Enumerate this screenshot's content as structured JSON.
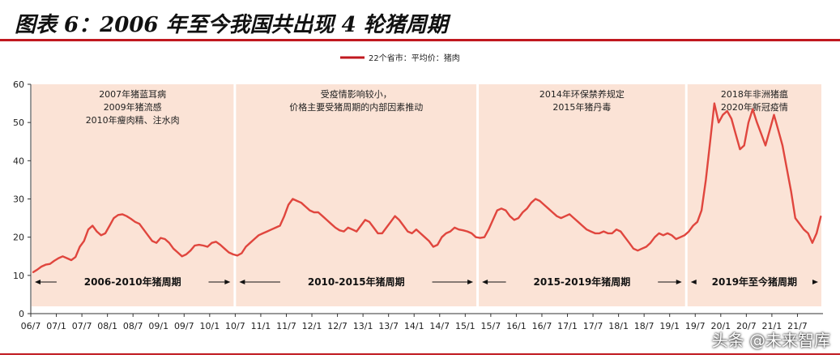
{
  "figure_title": "图表 6：2006 年至今我国共出现 4 轮猪周期",
  "watermark": "头条 @未来智库",
  "colors": {
    "line": "#e0463e",
    "shade": "#fbe3d6",
    "rule": "#c0181f",
    "legend": "#c0181f"
  },
  "chart_data": {
    "type": "line",
    "title": "",
    "xlabel": "",
    "ylabel": "",
    "ylim": [
      0,
      60
    ],
    "yticks": [
      0,
      10,
      20,
      30,
      40,
      50,
      60
    ],
    "legend": {
      "position": "top-center",
      "label": "22个省市：平均价：猪肉"
    },
    "x_tick_labels": [
      "06/7",
      "07/1",
      "07/7",
      "08/1",
      "08/7",
      "09/1",
      "09/7",
      "10/1",
      "10/7",
      "11/1",
      "11/7",
      "12/1",
      "12/7",
      "13/1",
      "13/7",
      "14/1",
      "14/7",
      "15/1",
      "15/7",
      "16/1",
      "16/7",
      "17/1",
      "17/7",
      "18/1",
      "18/7",
      "19/1",
      "19/7",
      "20/1",
      "20/7",
      "21/1",
      "21/7"
    ],
    "x_start": "2006-07",
    "x_end": "2021-12",
    "cycles": [
      {
        "label": "2006-2010年猪周期",
        "start": "2006-07",
        "end": "2010-06",
        "notes": [
          "2007年猪蓝耳病",
          "2009年猪流感",
          "2010年瘦肉精、注水肉"
        ]
      },
      {
        "label": "2010-2015年猪周期",
        "start": "2010-07",
        "end": "2015-03",
        "notes": [
          "受疫情影响较小，",
          "价格主要受猪周期的内部因素推动"
        ]
      },
      {
        "label": "2015-2019年猪周期",
        "start": "2015-04",
        "end": "2019-04",
        "notes": [
          "2014年环保禁养规定",
          "2015年猪丹毒"
        ]
      },
      {
        "label": "2019年至今猪周期",
        "start": "2019-05",
        "end": "2021-12",
        "notes": [
          "2018年非洲猪瘟",
          "2020年新冠疫情"
        ]
      }
    ],
    "series": [
      {
        "name": "22个省市：平均价：猪肉",
        "points": [
          [
            "2006-07",
            10.8
          ],
          [
            "2006-08",
            11.5
          ],
          [
            "2006-09",
            12.3
          ],
          [
            "2006-10",
            12.8
          ],
          [
            "2006-11",
            13.0
          ],
          [
            "2006-12",
            13.8
          ],
          [
            "2007-01",
            14.5
          ],
          [
            "2007-02",
            15.0
          ],
          [
            "2007-03",
            14.5
          ],
          [
            "2007-04",
            14.0
          ],
          [
            "2007-05",
            14.8
          ],
          [
            "2007-06",
            17.5
          ],
          [
            "2007-07",
            19.0
          ],
          [
            "2007-08",
            22.0
          ],
          [
            "2007-09",
            23.0
          ],
          [
            "2007-10",
            21.5
          ],
          [
            "2007-11",
            20.5
          ],
          [
            "2007-12",
            21.0
          ],
          [
            "2008-01",
            23.0
          ],
          [
            "2008-02",
            25.0
          ],
          [
            "2008-03",
            25.8
          ],
          [
            "2008-04",
            26.0
          ],
          [
            "2008-05",
            25.5
          ],
          [
            "2008-06",
            24.8
          ],
          [
            "2008-07",
            24.0
          ],
          [
            "2008-08",
            23.5
          ],
          [
            "2008-09",
            22.0
          ],
          [
            "2008-10",
            20.5
          ],
          [
            "2008-11",
            19.0
          ],
          [
            "2008-12",
            18.5
          ],
          [
            "2009-01",
            19.8
          ],
          [
            "2009-02",
            19.5
          ],
          [
            "2009-03",
            18.5
          ],
          [
            "2009-04",
            17.0
          ],
          [
            "2009-05",
            16.0
          ],
          [
            "2009-06",
            15.0
          ],
          [
            "2009-07",
            15.5
          ],
          [
            "2009-08",
            16.5
          ],
          [
            "2009-09",
            17.8
          ],
          [
            "2009-10",
            18.0
          ],
          [
            "2009-11",
            17.8
          ],
          [
            "2009-12",
            17.5
          ],
          [
            "2010-01",
            18.5
          ],
          [
            "2010-02",
            18.8
          ],
          [
            "2010-03",
            18.0
          ],
          [
            "2010-04",
            17.0
          ],
          [
            "2010-05",
            16.0
          ],
          [
            "2010-06",
            15.5
          ],
          [
            "2010-07",
            15.2
          ],
          [
            "2010-08",
            15.8
          ],
          [
            "2010-09",
            17.5
          ],
          [
            "2010-10",
            18.5
          ],
          [
            "2010-11",
            19.5
          ],
          [
            "2010-12",
            20.5
          ],
          [
            "2011-01",
            21.0
          ],
          [
            "2011-02",
            21.5
          ],
          [
            "2011-03",
            22.0
          ],
          [
            "2011-04",
            22.5
          ],
          [
            "2011-05",
            23.0
          ],
          [
            "2011-06",
            25.5
          ],
          [
            "2011-07",
            28.5
          ],
          [
            "2011-08",
            30.0
          ],
          [
            "2011-09",
            29.5
          ],
          [
            "2011-10",
            29.0
          ],
          [
            "2011-11",
            28.0
          ],
          [
            "2011-12",
            27.0
          ],
          [
            "2012-01",
            26.5
          ],
          [
            "2012-02",
            26.5
          ],
          [
            "2012-03",
            25.5
          ],
          [
            "2012-04",
            24.5
          ],
          [
            "2012-05",
            23.5
          ],
          [
            "2012-06",
            22.5
          ],
          [
            "2012-07",
            21.8
          ],
          [
            "2012-08",
            21.5
          ],
          [
            "2012-09",
            22.5
          ],
          [
            "2012-10",
            22.0
          ],
          [
            "2012-11",
            21.5
          ],
          [
            "2012-12",
            23.0
          ],
          [
            "2013-01",
            24.5
          ],
          [
            "2013-02",
            24.0
          ],
          [
            "2013-03",
            22.5
          ],
          [
            "2013-04",
            21.0
          ],
          [
            "2013-05",
            21.0
          ],
          [
            "2013-06",
            22.5
          ],
          [
            "2013-07",
            24.0
          ],
          [
            "2013-08",
            25.5
          ],
          [
            "2013-09",
            24.5
          ],
          [
            "2013-10",
            23.0
          ],
          [
            "2013-11",
            21.5
          ],
          [
            "2013-12",
            21.0
          ],
          [
            "2014-01",
            22.0
          ],
          [
            "2014-02",
            21.0
          ],
          [
            "2014-03",
            20.0
          ],
          [
            "2014-04",
            19.0
          ],
          [
            "2014-05",
            17.5
          ],
          [
            "2014-06",
            18.0
          ],
          [
            "2014-07",
            20.0
          ],
          [
            "2014-08",
            21.0
          ],
          [
            "2014-09",
            21.5
          ],
          [
            "2014-10",
            22.5
          ],
          [
            "2014-11",
            22.0
          ],
          [
            "2014-12",
            21.8
          ],
          [
            "2015-01",
            21.5
          ],
          [
            "2015-02",
            21.0
          ],
          [
            "2015-03",
            20.0
          ],
          [
            "2015-04",
            19.8
          ],
          [
            "2015-05",
            20.0
          ],
          [
            "2015-06",
            22.0
          ],
          [
            "2015-07",
            24.5
          ],
          [
            "2015-08",
            27.0
          ],
          [
            "2015-09",
            27.5
          ],
          [
            "2015-10",
            27.0
          ],
          [
            "2015-11",
            25.5
          ],
          [
            "2015-12",
            24.5
          ],
          [
            "2016-01",
            25.0
          ],
          [
            "2016-02",
            26.5
          ],
          [
            "2016-03",
            27.5
          ],
          [
            "2016-04",
            29.0
          ],
          [
            "2016-05",
            30.0
          ],
          [
            "2016-06",
            29.5
          ],
          [
            "2016-07",
            28.5
          ],
          [
            "2016-08",
            27.5
          ],
          [
            "2016-09",
            26.5
          ],
          [
            "2016-10",
            25.5
          ],
          [
            "2016-11",
            25.0
          ],
          [
            "2016-12",
            25.5
          ],
          [
            "2017-01",
            26.0
          ],
          [
            "2017-02",
            25.0
          ],
          [
            "2017-03",
            24.0
          ],
          [
            "2017-04",
            23.0
          ],
          [
            "2017-05",
            22.0
          ],
          [
            "2017-06",
            21.5
          ],
          [
            "2017-07",
            21.0
          ],
          [
            "2017-08",
            21.0
          ],
          [
            "2017-09",
            21.5
          ],
          [
            "2017-10",
            21.0
          ],
          [
            "2017-11",
            21.0
          ],
          [
            "2017-12",
            22.0
          ],
          [
            "2018-01",
            21.5
          ],
          [
            "2018-02",
            20.0
          ],
          [
            "2018-03",
            18.5
          ],
          [
            "2018-04",
            17.0
          ],
          [
            "2018-05",
            16.5
          ],
          [
            "2018-06",
            17.0
          ],
          [
            "2018-07",
            17.5
          ],
          [
            "2018-08",
            18.5
          ],
          [
            "2018-09",
            20.0
          ],
          [
            "2018-10",
            21.0
          ],
          [
            "2018-11",
            20.5
          ],
          [
            "2018-12",
            21.0
          ],
          [
            "2019-01",
            20.5
          ],
          [
            "2019-02",
            19.5
          ],
          [
            "2019-03",
            20.0
          ],
          [
            "2019-04",
            20.5
          ],
          [
            "2019-05",
            21.5
          ],
          [
            "2019-06",
            23.0
          ],
          [
            "2019-07",
            24.0
          ],
          [
            "2019-08",
            27.0
          ],
          [
            "2019-09",
            35.0
          ],
          [
            "2019-10",
            45.0
          ],
          [
            "2019-11",
            55.0
          ],
          [
            "2019-12",
            50.0
          ],
          [
            "2020-01",
            52.0
          ],
          [
            "2020-02",
            53.0
          ],
          [
            "2020-03",
            51.0
          ],
          [
            "2020-04",
            47.0
          ],
          [
            "2020-05",
            43.0
          ],
          [
            "2020-06",
            44.0
          ],
          [
            "2020-07",
            50.0
          ],
          [
            "2020-08",
            53.5
          ],
          [
            "2020-09",
            50.0
          ],
          [
            "2020-10",
            47.0
          ],
          [
            "2020-11",
            44.0
          ],
          [
            "2020-12",
            48.0
          ],
          [
            "2021-01",
            52.0
          ],
          [
            "2021-02",
            48.0
          ],
          [
            "2021-03",
            44.0
          ],
          [
            "2021-04",
            38.0
          ],
          [
            "2021-05",
            32.0
          ],
          [
            "2021-06",
            25.0
          ],
          [
            "2021-07",
            23.5
          ],
          [
            "2021-08",
            22.0
          ],
          [
            "2021-09",
            21.0
          ],
          [
            "2021-10",
            18.5
          ],
          [
            "2021-11",
            21.0
          ],
          [
            "2021-12",
            25.5
          ]
        ]
      }
    ]
  }
}
